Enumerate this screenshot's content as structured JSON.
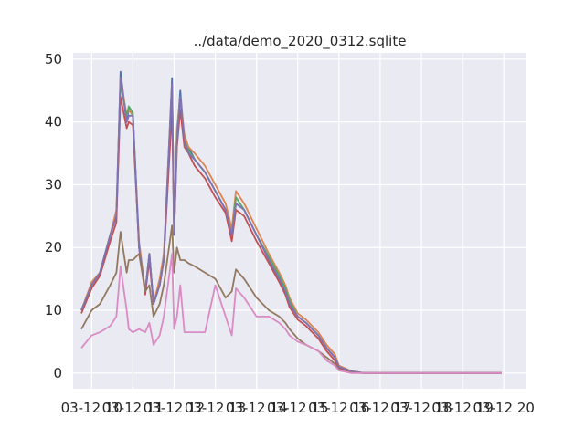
{
  "chart_data": {
    "type": "line",
    "title": "../data/demo_2020_0312.sqlite",
    "xlabel": "",
    "ylabel": "",
    "ylim": [
      -2.5,
      51
    ],
    "y_ticks": [
      0,
      10,
      20,
      30,
      40,
      50
    ],
    "x_ticks": [
      "03-12 10",
      "03-12 11",
      "03-12 12",
      "03-12 13",
      "03-12 14",
      "03-12 15",
      "03-12 16",
      "03-12 17",
      "03-12 18",
      "03-12 19",
      "03-12 20"
    ],
    "x_tick_labels": [
      "03-12 10",
      "03-12 11",
      "03-12 12",
      "03-12 13",
      "03-12 14",
      "03-12 15",
      "03-12 16",
      "03-12 17",
      "03-12 18",
      "03-12 19",
      "03-12 20"
    ],
    "x_hours": [
      9.75,
      10.0,
      10.2,
      10.45,
      10.6,
      10.7,
      10.85,
      10.9,
      11.0,
      11.15,
      11.3,
      11.4,
      11.5,
      11.65,
      11.75,
      11.95,
      12.0,
      12.07,
      12.15,
      12.25,
      12.35,
      12.5,
      12.75,
      13.0,
      13.25,
      13.4,
      13.5,
      13.7,
      14.0,
      14.3,
      14.55,
      14.7,
      14.8,
      15.0,
      15.2,
      15.5,
      15.7,
      15.9,
      16.0,
      16.3,
      16.6,
      17.0,
      17.5,
      18.0,
      18.5,
      19.0,
      19.5,
      19.95
    ],
    "series": [
      {
        "color": "#4c72b0",
        "values": [
          10,
          14,
          16,
          22,
          25,
          48,
          40,
          42,
          41,
          20,
          13,
          19,
          11,
          14,
          18,
          47,
          22,
          38,
          45,
          37,
          36,
          34,
          32,
          29,
          26,
          22,
          27,
          26,
          22,
          18,
          15,
          13,
          11,
          9,
          8,
          6,
          4,
          2.5,
          1,
          0.3,
          0,
          0,
          0,
          0,
          0,
          0,
          0,
          0
        ]
      },
      {
        "color": "#dd8452",
        "values": [
          10,
          14.5,
          16,
          22,
          26,
          47,
          41,
          42,
          41,
          21,
          13,
          19,
          11,
          15,
          19,
          46,
          24,
          39,
          44,
          38,
          36,
          35,
          33,
          30,
          27,
          23,
          29,
          27,
          23,
          19,
          16,
          14,
          12,
          9.5,
          8.5,
          6.5,
          4.5,
          3,
          1.2,
          0.3,
          0,
          0,
          0,
          0,
          0,
          0,
          0,
          0
        ]
      },
      {
        "color": "#55a868",
        "values": [
          10,
          14,
          16,
          22,
          25,
          46,
          41,
          42.5,
          41.5,
          20,
          13,
          19,
          11,
          14,
          18,
          45,
          23,
          38,
          44,
          37,
          35.5,
          34,
          32,
          29,
          26,
          22,
          28,
          26,
          22,
          18.5,
          15.5,
          13.5,
          11.5,
          9,
          8,
          6,
          4,
          2.5,
          1,
          0.3,
          0,
          0,
          0,
          0,
          0,
          0,
          0,
          0
        ]
      },
      {
        "color": "#c44e52",
        "values": [
          9.5,
          13.5,
          15.5,
          21,
          24,
          44,
          39,
          40,
          39.5,
          20,
          12.5,
          18,
          11,
          14,
          18,
          42,
          22,
          36,
          42,
          36,
          35,
          33,
          31,
          28,
          25.5,
          21,
          26,
          25,
          21,
          17.5,
          14.5,
          12.5,
          10.5,
          8.5,
          7.5,
          5.5,
          3.5,
          2,
          0.8,
          0.2,
          0,
          0,
          0,
          0,
          0,
          0,
          0,
          0
        ]
      },
      {
        "color": "#8172b3",
        "values": [
          10,
          14,
          16,
          22,
          25,
          47,
          40,
          41,
          41,
          20,
          13,
          19,
          11,
          14,
          18,
          46,
          22,
          37,
          44,
          37,
          35,
          34,
          32,
          29,
          26,
          22,
          27,
          26,
          22,
          18,
          15,
          13,
          11,
          9,
          8,
          6,
          4,
          2.5,
          1,
          0.3,
          0,
          0,
          0,
          0,
          0,
          0,
          0,
          0
        ]
      },
      {
        "color": "#937860",
        "values": [
          7,
          10,
          11,
          14,
          16,
          22.5,
          16,
          18,
          18,
          19,
          13,
          14,
          9,
          11,
          14,
          23.5,
          16,
          20,
          18,
          18,
          17.5,
          17,
          16,
          15,
          12,
          13,
          16.5,
          15,
          12,
          10,
          9,
          8,
          7,
          5.5,
          4.5,
          3.5,
          2.5,
          1.5,
          0.5,
          0.1,
          0,
          0,
          0,
          0,
          0,
          0,
          0,
          0
        ]
      },
      {
        "color": "#da8bc3",
        "values": [
          4,
          6,
          6.5,
          7.5,
          9,
          17,
          10,
          7,
          6.5,
          7,
          6.5,
          8,
          4.5,
          6,
          9,
          19,
          7,
          9,
          14,
          6.5,
          6.5,
          6.5,
          6.5,
          14,
          9,
          6,
          13.5,
          12,
          9,
          9,
          8,
          7,
          6,
          5,
          4.5,
          3.5,
          2,
          1.2,
          0.4,
          0,
          0,
          0,
          0,
          0,
          0,
          0,
          0,
          0
        ]
      }
    ]
  }
}
